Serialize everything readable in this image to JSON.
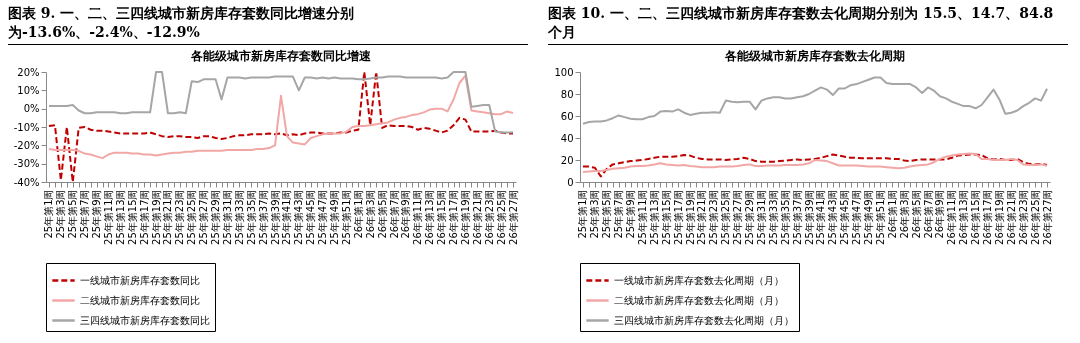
{
  "chart_data": [
    {
      "type": "line",
      "title": "图表 9. 一、二、三四线城市新房库存套数同比增速分别为-13.6%、-2.4%、-12.9%",
      "subtitle": "各能级城市新房库存套数同比增速",
      "categories": [
        "25年第1周",
        null,
        "25年第3周",
        null,
        "25年第5周",
        null,
        "25年第7周",
        null,
        "25年第9周",
        null,
        "25年第11周",
        null,
        "25年第13周",
        null,
        "25年第15周",
        null,
        "25年第17周",
        null,
        "25年第19周",
        null,
        "25年第21周",
        null,
        "25年第23周",
        null,
        "25年第25周",
        null,
        "25年第27周",
        null,
        "25年第29周",
        null,
        "25年第31周",
        null,
        "25年第33周",
        null,
        "25年第35周",
        null,
        "25年第37周",
        null,
        "25年第39周",
        null,
        "25年第41周",
        null,
        "25年第43周",
        null,
        "25年第45周",
        null,
        "25年第47周",
        null,
        "25年第49周",
        null,
        "25年第51周",
        null,
        "26年第1周",
        null,
        "26年第3周",
        null,
        "26年第5周",
        null,
        "26年第7周",
        null,
        "26年第9周",
        null,
        "26年第11周",
        null,
        "26年第13周",
        null,
        "26年第15周",
        null,
        "26年第17周",
        null,
        "26年第19周",
        null,
        "26年第21周",
        null,
        "26年第23周",
        null,
        "26年第25周",
        null,
        "26年第27周"
      ],
      "series": [
        {
          "name": "一线城市新房库存套数同比",
          "color": "#c00000",
          "line_style": "dashed",
          "values": [
            -9.5,
            -9,
            -39,
            -10,
            -40,
            -10.5,
            -10,
            -11.5,
            -12,
            -12,
            -12.5,
            -13,
            -13.5,
            -13.5,
            -13.5,
            -13.5,
            -13.5,
            -13,
            -14,
            -15,
            -15.5,
            -15,
            -15,
            -15.5,
            -15.5,
            -16,
            -15,
            -15,
            -16,
            -16.5,
            -16,
            -15,
            -14.5,
            -14.5,
            -14,
            -14,
            -14,
            -13.5,
            -14,
            -13.5,
            -14.5,
            -14,
            -14.5,
            -13.5,
            -13,
            -13,
            -13.5,
            -13.5,
            -13.5,
            -13,
            -13,
            -12,
            -11.5,
            20,
            -9,
            20,
            -10.5,
            -9,
            -9.5,
            -9.5,
            -9.5,
            -10,
            -11.5,
            -10.5,
            -11,
            -12,
            -13,
            -12,
            -9,
            -5,
            -6,
            -12.5,
            -12.5,
            -12.5,
            -12.5,
            -12,
            -13,
            -13.5,
            -13.6
          ]
        },
        {
          "name": "二线城市新房库存套数同比",
          "color": "#f2a7a7",
          "line_style": "solid",
          "values": [
            -22,
            -22.5,
            -22.5,
            -22.5,
            -22.5,
            -23,
            -24.5,
            -25,
            -26,
            -27,
            -25,
            -24,
            -24,
            -24,
            -24.5,
            -24.5,
            -25,
            -25,
            -25.5,
            -25,
            -24.5,
            -24,
            -24,
            -23.5,
            -23.5,
            -23,
            -23,
            -23,
            -23,
            -23,
            -22.5,
            -22.5,
            -22.5,
            -22.5,
            -22.5,
            -22,
            -22,
            -21.5,
            -20,
            7,
            -15,
            -18.5,
            -19,
            -19.5,
            -16,
            -15,
            -14,
            -13.5,
            -13.5,
            -13.5,
            -12.5,
            -10,
            -9.5,
            -9.5,
            -9,
            -8.5,
            -8,
            -7.5,
            -6,
            -5,
            -4.5,
            -3.5,
            -3,
            -2,
            -0.5,
            0,
            0,
            -1.5,
            5,
            14,
            18,
            -1,
            -1.5,
            -2,
            -2.5,
            -3,
            -3,
            -1.5,
            -2.4
          ]
        },
        {
          "name": "三四线城市新房库存套数同比",
          "color": "#a6a6a6",
          "line_style": "solid",
          "values": [
            1.5,
            1.5,
            1.5,
            1.5,
            2,
            -1,
            -2.5,
            -2.5,
            -2,
            -2,
            -2,
            -2,
            -2.5,
            -2.5,
            -2,
            -2,
            -2,
            -2,
            20,
            20,
            -2.5,
            -2.5,
            -2,
            -2.5,
            15,
            14.5,
            16,
            16,
            16,
            5,
            17,
            17,
            17,
            16.5,
            17,
            17,
            17,
            17,
            17.5,
            17.5,
            17.5,
            17.5,
            10,
            17,
            17,
            16.5,
            17,
            16.5,
            17,
            16.5,
            16.5,
            16.5,
            16,
            16,
            16.5,
            17,
            17,
            17.5,
            17.5,
            17.5,
            17,
            17,
            17,
            17,
            17,
            17,
            16.5,
            17,
            20,
            20,
            20,
            1,
            1.5,
            2,
            2,
            -12.5,
            -13,
            -13,
            -12.9
          ]
        }
      ],
      "ylim": [
        -40,
        20
      ],
      "yticks": [
        {
          "value": -40,
          "label": "-40%"
        },
        {
          "value": -30,
          "label": "-30%"
        },
        {
          "value": -20,
          "label": "-20%"
        },
        {
          "value": -10,
          "label": "-10%"
        },
        {
          "value": 0,
          "label": "0%"
        },
        {
          "value": 10,
          "label": "10%"
        },
        {
          "value": 20,
          "label": "20%"
        }
      ],
      "legend": "bottom"
    },
    {
      "type": "line",
      "title": "图表 10. 一、二、三四线城市新房库存套数去化周期分别为 15.5、14.7、84.8 个月",
      "subtitle": "各能级城市新房库存套数去化周期",
      "categories": [
        "25年第1周",
        null,
        "25年第3周",
        null,
        "25年第5周",
        null,
        "25年第7周",
        null,
        "25年第9周",
        null,
        "25年第11周",
        null,
        "25年第13周",
        null,
        "25年第15周",
        null,
        "25年第17周",
        null,
        "25年第19周",
        null,
        "25年第21周",
        null,
        "25年第23周",
        null,
        "25年第25周",
        null,
        "25年第27周",
        null,
        "25年第29周",
        null,
        "25年第31周",
        null,
        "25年第33周",
        null,
        "25年第35周",
        null,
        "25年第37周",
        null,
        "25年第39周",
        null,
        "25年第41周",
        null,
        "25年第43周",
        null,
        "25年第45周",
        null,
        "25年第47周",
        null,
        "25年第49周",
        null,
        "25年第51周",
        null,
        "26年第1周",
        null,
        "26年第3周",
        null,
        "26年第5周",
        null,
        "26年第7周",
        null,
        "26年第9周",
        null,
        "26年第11周",
        null,
        "26年第13周",
        null,
        "26年第15周",
        null,
        "26年第17周",
        null,
        "26年第19周",
        null,
        "26年第21周",
        null,
        "26年第23周",
        null,
        "26年第25周",
        null,
        "26年第27周"
      ],
      "series": [
        {
          "name": "一线城市新房库存套数去化周期（月）",
          "color": "#c00000",
          "line_style": "dashed",
          "values": [
            14,
            14,
            13,
            5,
            12,
            16,
            17,
            18,
            19,
            19.5,
            20,
            21,
            22,
            23,
            23,
            23,
            23.5,
            24.5,
            24,
            22,
            21,
            20.5,
            20.5,
            20.5,
            20,
            20.5,
            21,
            22,
            21,
            19,
            18.5,
            18.5,
            18.5,
            19,
            19.5,
            20,
            20.5,
            20,
            20.5,
            21,
            22,
            23.5,
            25,
            24,
            23,
            22,
            22,
            21.5,
            21.5,
            21.5,
            21.5,
            21.5,
            21,
            21,
            19.5,
            19,
            20,
            20.5,
            20.5,
            20.5,
            20.5,
            20.5,
            22,
            24,
            24.5,
            25,
            25,
            24.5,
            21.5,
            20.5,
            21,
            20,
            20,
            21,
            18,
            16.5,
            16,
            16.5,
            15.5
          ]
        },
        {
          "name": "二线城市新房库存套数去化周期（月）",
          "color": "#f2a7a7",
          "line_style": "solid",
          "values": [
            9,
            9.5,
            10,
            10,
            11,
            12,
            12.5,
            13,
            14,
            14.5,
            14.5,
            15,
            16,
            17,
            16,
            15.5,
            15,
            15.5,
            14.5,
            14,
            13.5,
            13.5,
            13.5,
            14,
            14,
            14,
            14.5,
            15.5,
            16,
            14.5,
            14.5,
            15,
            15,
            15,
            15.5,
            15.5,
            15.5,
            16,
            17,
            20,
            19.5,
            19,
            17,
            15,
            15,
            15,
            15,
            14.5,
            14,
            14,
            14,
            13.5,
            13,
            12.5,
            13,
            14,
            15,
            15.5,
            16,
            18,
            21,
            23,
            24,
            25,
            25.5,
            26,
            25.5,
            21,
            21,
            20,
            20,
            20,
            21,
            20,
            16,
            15.5,
            15.5,
            16,
            14.7
          ]
        },
        {
          "name": "三四线城市新房库存套数去化周期（月）",
          "color": "#a6a6a6",
          "line_style": "solid",
          "values": [
            53,
            54.5,
            55,
            55,
            56,
            58,
            60.5,
            59,
            57.5,
            57,
            57,
            59,
            60,
            64,
            64.5,
            64,
            66,
            63,
            61,
            62,
            63,
            63,
            63.5,
            63,
            74,
            73,
            72.5,
            73,
            73,
            66,
            74,
            76,
            77,
            77,
            76,
            76,
            77,
            78,
            80,
            83,
            86,
            84,
            79,
            85,
            85,
            88,
            89,
            91,
            93,
            95,
            95,
            90,
            89,
            89,
            89,
            89,
            86,
            81,
            86,
            83,
            78,
            76,
            73,
            71,
            69,
            69,
            67,
            70,
            77,
            84,
            75,
            62,
            63,
            65,
            69,
            72,
            76,
            74,
            84.8
          ]
        }
      ],
      "ylim": [
        0,
        100
      ],
      "yticks": [
        0,
        20,
        40,
        60,
        80,
        100
      ],
      "legend": "bottom"
    }
  ]
}
